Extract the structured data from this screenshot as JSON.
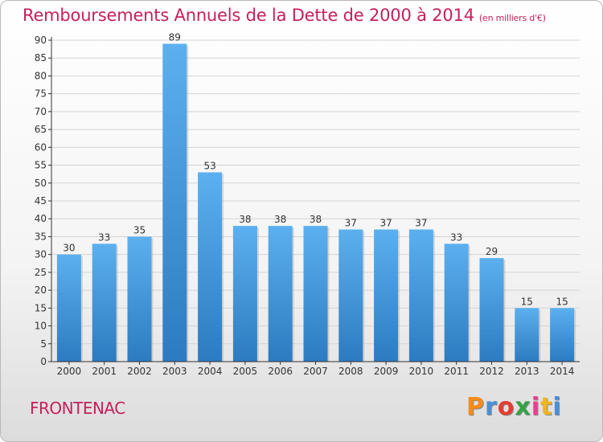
{
  "header": {
    "title": "Remboursements Annuels de la Dette de 2000 à 2014",
    "unit": "(en milliers d'€)"
  },
  "footer": {
    "commune": "FRONTENAC",
    "brand": [
      "P",
      "r",
      "o",
      "x",
      "i",
      "t",
      "i"
    ],
    "brand_colors": [
      "#f28c1d",
      "#4a8fd8",
      "#e53d2f",
      "#33a245",
      "#e83f8d",
      "#f2b31d",
      "#4a8fd8"
    ]
  },
  "colors": {
    "bar_top": "#5cb0ef",
    "bar_bottom": "#2c7bc1",
    "grid": "#d4d4d4",
    "axis": "#333333",
    "text": "#333333",
    "accent": "#c71f5c"
  },
  "chart_data": {
    "type": "bar",
    "categories": [
      "2000",
      "2001",
      "2002",
      "2003",
      "2004",
      "2005",
      "2006",
      "2007",
      "2008",
      "2009",
      "2010",
      "2011",
      "2012",
      "2013",
      "2014"
    ],
    "values": [
      30,
      33,
      35,
      89,
      53,
      38,
      38,
      38,
      37,
      37,
      37,
      33,
      29,
      15,
      15
    ],
    "title": "Remboursements Annuels de la Dette de 2000 à 2014",
    "subtitle": "(en milliers d'€)",
    "xlabel": "",
    "ylabel": "",
    "ylim": [
      0,
      90
    ],
    "yticks": [
      0,
      5,
      10,
      15,
      20,
      25,
      30,
      35,
      40,
      45,
      50,
      55,
      60,
      65,
      70,
      75,
      80,
      85,
      90
    ],
    "grid": true,
    "data_labels": true,
    "legend": "none"
  }
}
